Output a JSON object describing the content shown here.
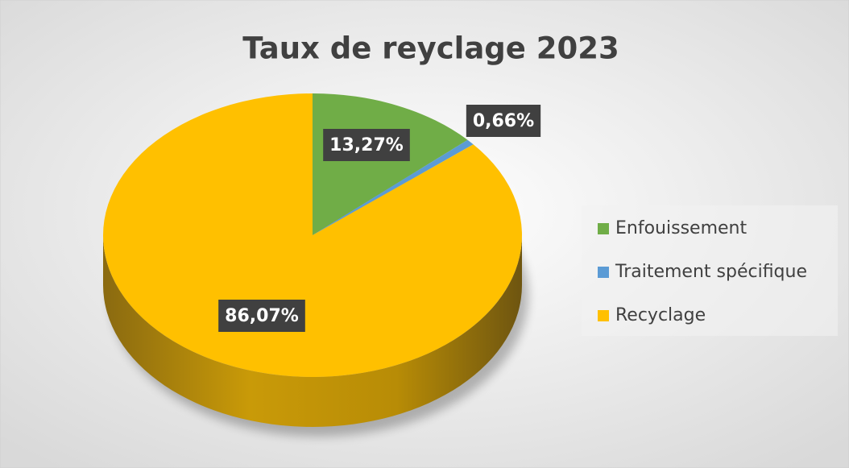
{
  "chart_data": {
    "type": "pie",
    "title": "Taux de reyclage 2023",
    "categories": [
      "Enfouissement",
      "Traitement spécifique",
      "Recyclage"
    ],
    "values": [
      13.27,
      0.66,
      86.07
    ],
    "value_labels": [
      "13,27%",
      "0,66%",
      "86,07%"
    ],
    "colors": [
      "#70ad47",
      "#5b9bd5",
      "#ffc000"
    ],
    "legend": "right"
  }
}
